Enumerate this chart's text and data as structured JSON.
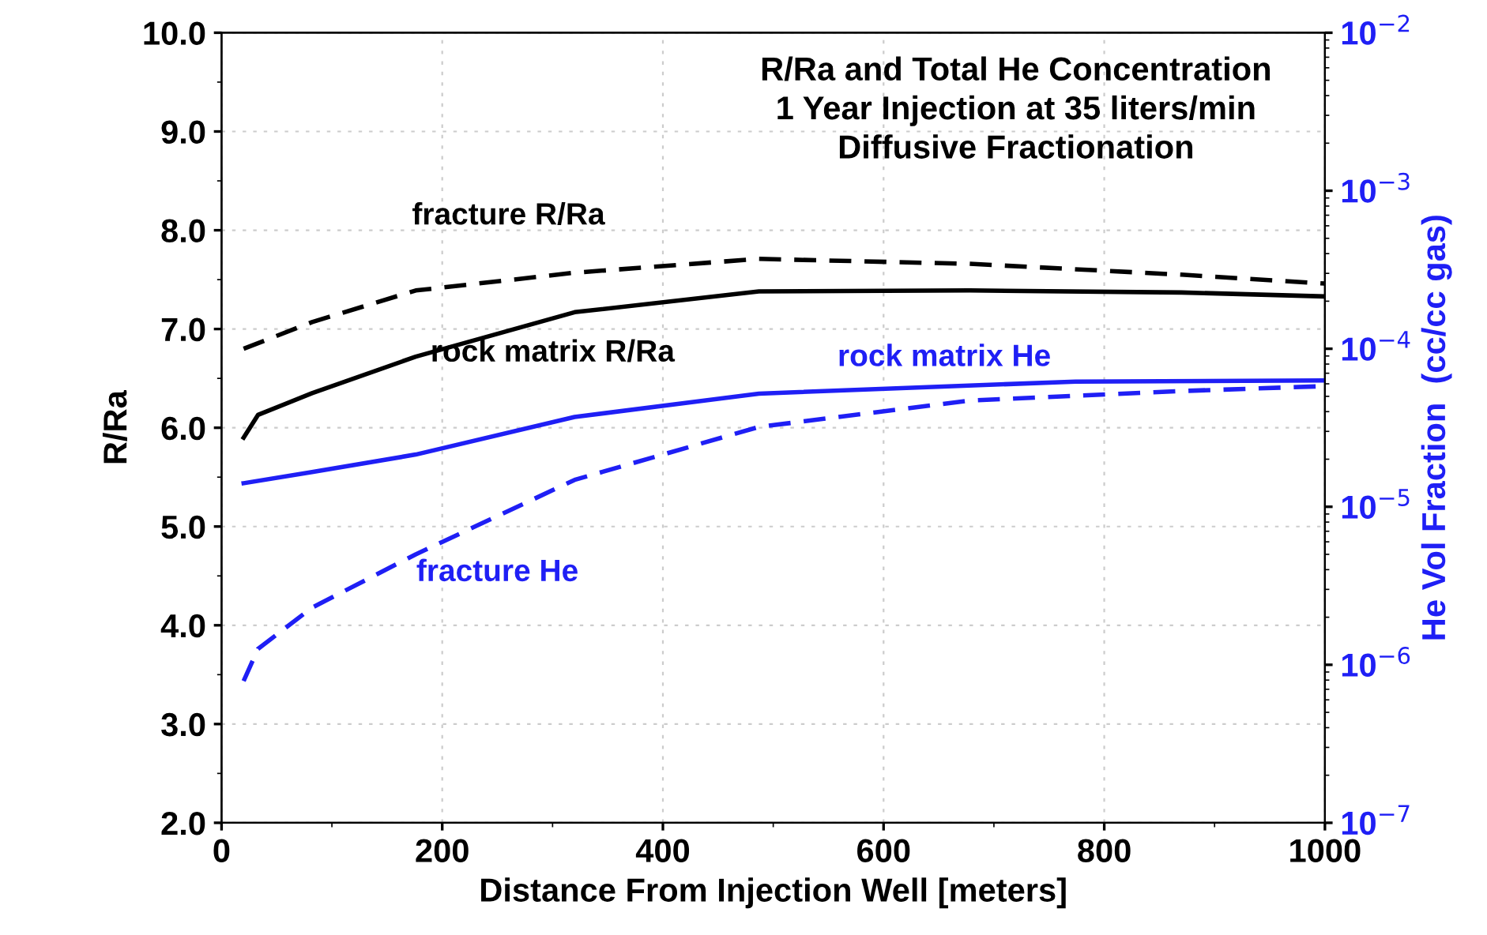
{
  "chart_data": {
    "type": "line",
    "title": "R/Ra and Total He Concentration\n1 Year Injection at 35 liters/min\nDiffusive Fractionation",
    "xlabel": "Distance From Injection Well [meters]",
    "ylabel": "R/Ra",
    "y2label": "He Vol Fraction  (cc/cc gas)",
    "xlim": [
      0,
      1000
    ],
    "xticks": [
      0,
      200,
      400,
      600,
      800,
      1000
    ],
    "ylim": [
      2,
      10
    ],
    "yticks": [
      {
        "value": 2,
        "label": "2.0"
      },
      {
        "value": 3,
        "label": "3.0"
      },
      {
        "value": 4,
        "label": "4.0"
      },
      {
        "value": 5,
        "label": "5.0"
      },
      {
        "value": 6,
        "label": "6.0"
      },
      {
        "value": 7,
        "label": "7.0"
      },
      {
        "value": 8,
        "label": "8.0"
      },
      {
        "value": 9,
        "label": "9.0"
      },
      {
        "value": 10,
        "label": "10.0"
      }
    ],
    "log": "y2",
    "y2lim": [
      1e-07,
      0.01
    ],
    "y2ticks": [
      {
        "value": 1e-07,
        "label": "10$^{−7}$"
      },
      {
        "value": 1e-06,
        "label": "10$^{−6}$"
      },
      {
        "value": 1e-05,
        "label": "10$^{−5}$"
      },
      {
        "value": 0.0001,
        "label": "10$^{−4}$"
      },
      {
        "value": 0.001,
        "label": "10$^{−3}$"
      },
      {
        "value": 0.01,
        "label": "10$^{−2}$"
      }
    ],
    "grid": true,
    "legend": false,
    "series": [
      {
        "name": "fracture R/Ra",
        "color": "#000000",
        "line_style": "dashed",
        "x": [
          20,
          82,
          176,
          320,
          487,
          678,
          870,
          1000
        ],
        "values": [
          6.8,
          7.07,
          7.39,
          7.57,
          7.71,
          7.66,
          7.55,
          7.46
        ]
      },
      {
        "name": "rock matrix R/Ra",
        "color": "#000000",
        "line_style": "solid",
        "x": [
          20,
          33,
          82,
          176,
          320,
          487,
          678,
          870,
          1000
        ],
        "values": [
          5.9,
          6.13,
          6.35,
          6.72,
          7.17,
          7.38,
          7.39,
          7.37,
          7.33
        ]
      },
      {
        "name": "rock matrix He",
        "color": "#1f1ff5",
        "line_style": "solid",
        "axis": "y2",
        "x": [
          20,
          82,
          176,
          320,
          487,
          774,
          1000
        ],
        "values": [
          1.41e-05,
          1.66e-05,
          2.14e-05,
          3.7e-05,
          5.2e-05,
          6.2e-05,
          6.3e-05
        ]
      },
      {
        "name": "fracture He",
        "color": "#1f1ff5",
        "line_style": "dashed",
        "axis": "y2",
        "x": [
          20,
          33,
          82,
          176,
          320,
          487,
          678,
          870,
          1000
        ],
        "values": [
          7.9e-07,
          1.26e-06,
          2.3e-06,
          5e-06,
          1.48e-05,
          3.2e-05,
          4.7e-05,
          5.4e-05,
          5.8e-05
        ]
      }
    ]
  }
}
